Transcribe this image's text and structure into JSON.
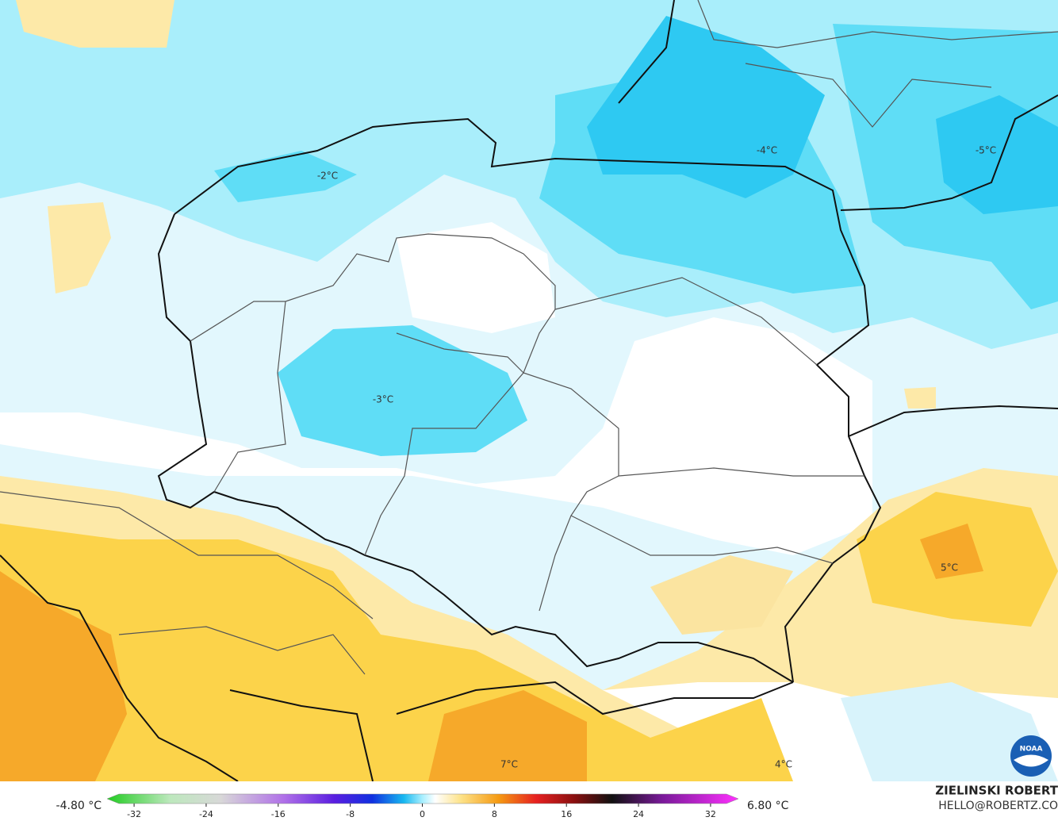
{
  "map": {
    "labels": [
      "-2°C",
      "-3°C",
      "-4°C",
      "-5°C",
      "5°C",
      "7°C",
      "4°C"
    ],
    "logo": "NOAA"
  },
  "legend": {
    "min_label": "-4.80 °C",
    "max_label": "6.80 °C",
    "range": [
      -35,
      35
    ],
    "ticks": [
      -32,
      -24,
      -16,
      -8,
      0,
      8,
      16,
      24,
      32
    ]
  },
  "credit": {
    "name": "ZIELINSKI ROBERT",
    "email": "HELLO@ROBERTZ.CO"
  }
}
